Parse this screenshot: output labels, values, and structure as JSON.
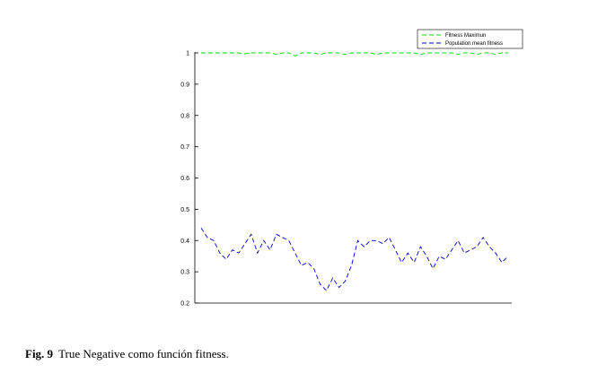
{
  "chart_data": {
    "type": "line",
    "title": "",
    "xlabel": "",
    "ylabel": "",
    "ylim": [
      0.2,
      1.0
    ],
    "yticks": [
      "0.2",
      "0.3",
      "0.4",
      "0.5",
      "0.6",
      "0.7",
      "0.8",
      "0.9",
      "1"
    ],
    "grid": false,
    "legend_position": "top-right",
    "x": [
      1,
      2,
      3,
      4,
      5,
      6,
      7,
      8,
      9,
      10,
      11,
      12,
      13,
      14,
      15,
      16,
      17,
      18,
      19,
      20,
      21,
      22,
      23,
      24,
      25,
      26,
      27,
      28,
      29,
      30,
      31,
      32,
      33,
      34,
      35,
      36,
      37,
      38,
      39,
      40,
      41,
      42,
      43,
      44,
      45,
      46,
      47,
      48,
      49,
      50
    ],
    "series": [
      {
        "name": "Fitness Maximun",
        "color": "#00dd00",
        "style": "dashed",
        "values": [
          1.0,
          1.0,
          1.0,
          1.0,
          1.0,
          1.0,
          1.0,
          0.997,
          1.0,
          1.0,
          1.0,
          1.0,
          0.995,
          1.0,
          1.0,
          0.99,
          1.0,
          1.0,
          1.0,
          0.995,
          1.0,
          1.0,
          1.0,
          0.995,
          1.0,
          1.0,
          1.0,
          1.0,
          0.995,
          1.0,
          1.0,
          1.0,
          1.0,
          1.0,
          1.0,
          0.995,
          1.0,
          1.0,
          1.0,
          1.0,
          1.0,
          0.995,
          1.0,
          1.0,
          0.995,
          1.0,
          1.0,
          0.995,
          1.0,
          1.0
        ]
      },
      {
        "name": "Population mean fitness",
        "color": "#0000cc",
        "style": "dashed",
        "values": [
          0.44,
          0.41,
          0.4,
          0.36,
          0.34,
          0.37,
          0.36,
          0.39,
          0.42,
          0.36,
          0.4,
          0.37,
          0.42,
          0.41,
          0.4,
          0.36,
          0.32,
          0.33,
          0.31,
          0.26,
          0.24,
          0.28,
          0.25,
          0.27,
          0.32,
          0.4,
          0.38,
          0.4,
          0.4,
          0.39,
          0.41,
          0.37,
          0.33,
          0.36,
          0.33,
          0.38,
          0.35,
          0.31,
          0.35,
          0.34,
          0.37,
          0.4,
          0.36,
          0.37,
          0.38,
          0.41,
          0.38,
          0.36,
          0.33,
          0.35
        ]
      }
    ]
  },
  "caption": {
    "label": "Fig. 9",
    "text": "True Negative como función fitness."
  }
}
